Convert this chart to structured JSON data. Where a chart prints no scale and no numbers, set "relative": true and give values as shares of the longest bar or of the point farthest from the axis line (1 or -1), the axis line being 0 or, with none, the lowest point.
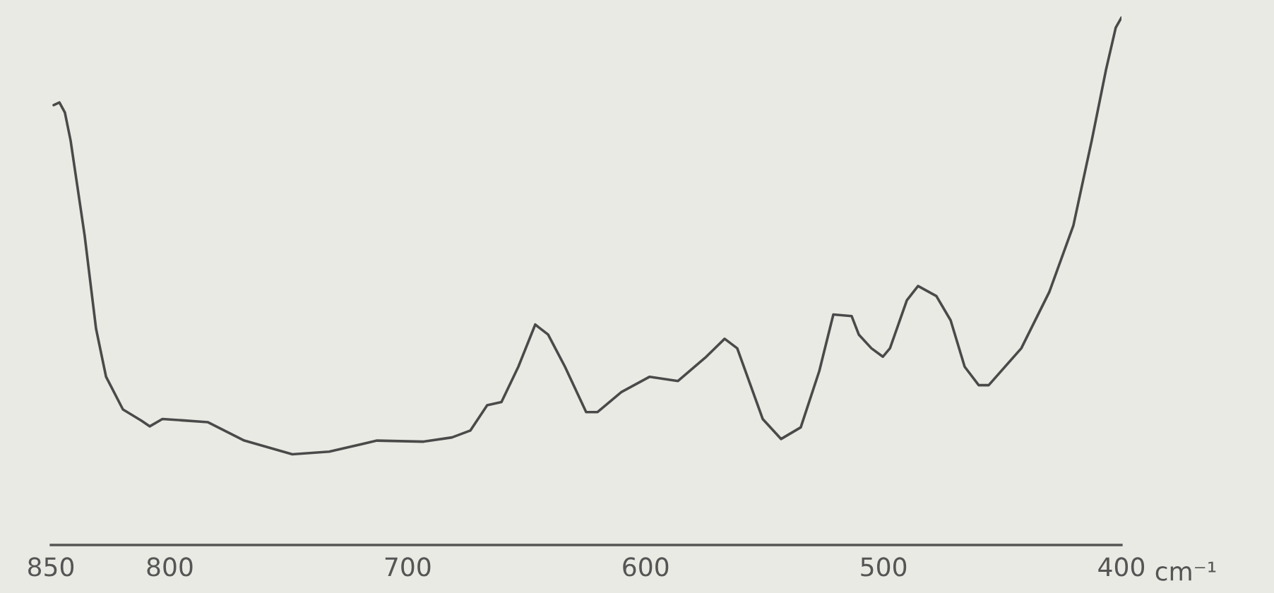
{
  "chart_data": {
    "type": "line",
    "relative": true,
    "xlabel": "cm⁻¹",
    "xlim": [
      850,
      400
    ],
    "xticks": [
      850,
      800,
      700,
      600,
      500,
      400
    ],
    "marker": "none",
    "line_style": "solid",
    "series": [
      {
        "color": "#4a4a4a",
        "x": [
          848.8,
          846.4,
          844.1,
          841.7,
          835.8,
          831.0,
          826.8,
          819.7,
          812.0,
          808.4,
          803.1,
          784.1,
          768.7,
          748.5,
          733.0,
          712.9,
          693.3,
          681.4,
          673.7,
          666.6,
          660.6,
          653.5,
          646.4,
          641.0,
          633.9,
          625.0,
          620.2,
          610.2,
          598.3,
          586.4,
          574.5,
          566.8,
          561.5,
          550.8,
          543.1,
          534.8,
          527.0,
          521.1,
          513.4,
          510.4,
          505.1,
          500.3,
          497.3,
          490.2,
          485.5,
          477.8,
          471.8,
          465.9,
          460.0,
          455.8,
          442.1,
          430.3,
          420.2,
          412.5,
          406.5,
          402.4,
          400.0
        ],
        "values": [
          0.834,
          0.839,
          0.82,
          0.767,
          0.587,
          0.41,
          0.319,
          0.257,
          0.236,
          0.225,
          0.239,
          0.233,
          0.198,
          0.172,
          0.177,
          0.198,
          0.196,
          0.204,
          0.217,
          0.265,
          0.271,
          0.338,
          0.418,
          0.399,
          0.338,
          0.252,
          0.252,
          0.29,
          0.319,
          0.311,
          0.357,
          0.391,
          0.373,
          0.239,
          0.201,
          0.223,
          0.33,
          0.437,
          0.434,
          0.399,
          0.373,
          0.357,
          0.373,
          0.464,
          0.491,
          0.472,
          0.426,
          0.338,
          0.303,
          0.303,
          0.373,
          0.48,
          0.606,
          0.767,
          0.901,
          0.981,
          1.0
        ]
      }
    ]
  }
}
